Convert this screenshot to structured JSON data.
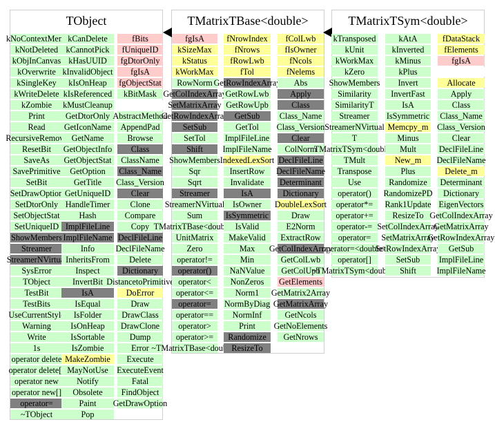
{
  "colors": {
    "g": "#ccffcc",
    "p": "#ffcccc",
    "y": "#ffff99",
    "d": "#808080",
    "w": "#ffffff"
  },
  "classes": [
    {
      "name": "TObject",
      "columns": [
        [
          [
            "kNoContextMenu",
            "g"
          ],
          [
            "kNotDeleted",
            "g"
          ],
          [
            "kObjInCanvas",
            "g"
          ],
          [
            "kOverwrite",
            "g"
          ],
          [
            "kSingleKey",
            "g"
          ],
          [
            "kWriteDelete",
            "g"
          ],
          [
            "kZombie",
            "g"
          ],
          [
            "Print",
            "g"
          ],
          [
            "Read",
            "g"
          ],
          [
            "RecursiveRemove",
            "g"
          ],
          [
            "ResetBit",
            "g"
          ],
          [
            "SaveAs",
            "g"
          ],
          [
            "SavePrimitive",
            "g"
          ],
          [
            "SetBit",
            "g"
          ],
          [
            "SetDrawOption",
            "g"
          ],
          [
            "SetDtorOnly",
            "g"
          ],
          [
            "SetObjectStat",
            "g"
          ],
          [
            "SetUniqueID",
            "g"
          ],
          [
            "ShowMembers",
            "d"
          ],
          [
            "Streamer",
            "d"
          ],
          [
            "StreamerNVirtual",
            "d"
          ],
          [
            "SysError",
            "g"
          ],
          [
            "TObject",
            "g"
          ],
          [
            "TestBit",
            "g"
          ],
          [
            "TestBits",
            "g"
          ],
          [
            "UseCurrentStyle",
            "g"
          ],
          [
            "Warning",
            "g"
          ],
          [
            "Write",
            "g"
          ],
          [
            "1s",
            "g"
          ],
          [
            "operator delete",
            "g"
          ],
          [
            "operator delete[]",
            "g"
          ],
          [
            "operator new",
            "g"
          ],
          [
            "operator new[]",
            "g"
          ],
          [
            "operator=",
            "d"
          ],
          [
            "~TObject",
            "g"
          ]
        ],
        [
          [
            "kCanDelete",
            "g"
          ],
          [
            "kCannotPick",
            "g"
          ],
          [
            "kHasUUID",
            "g"
          ],
          [
            "kInvalidObject",
            "g"
          ],
          [
            "kIsOnHeap",
            "g"
          ],
          [
            "kIsReferenced",
            "g"
          ],
          [
            "kMustCleanup",
            "g"
          ],
          [
            "GetDtorOnly",
            "g"
          ],
          [
            "GetIconName",
            "g"
          ],
          [
            "GetName",
            "g"
          ],
          [
            "GetObjectInfo",
            "g"
          ],
          [
            "GetObjectStat",
            "g"
          ],
          [
            "GetOption",
            "g"
          ],
          [
            "GetTitle",
            "g"
          ],
          [
            "GetUniqueID",
            "g"
          ],
          [
            "HandleTimer",
            "g"
          ],
          [
            "Hash",
            "g"
          ],
          [
            "ImplFileLine",
            "d"
          ],
          [
            "ImplFileName",
            "d"
          ],
          [
            "Info",
            "g"
          ],
          [
            "InheritsFrom",
            "g"
          ],
          [
            "Inspect",
            "g"
          ],
          [
            "InvertBit",
            "g"
          ],
          [
            "IsA",
            "d"
          ],
          [
            "IsEqual",
            "g"
          ],
          [
            "IsFolder",
            "g"
          ],
          [
            "IsOnHeap",
            "g"
          ],
          [
            "IsSortable",
            "g"
          ],
          [
            "IsZombie",
            "g"
          ],
          [
            "MakeZombie",
            "y"
          ],
          [
            "MayNotUse",
            "g"
          ],
          [
            "Notify",
            "g"
          ],
          [
            "Obsolete",
            "g"
          ],
          [
            "Paint",
            "g"
          ],
          [
            "Pop",
            "g"
          ]
        ],
        [
          [
            "fBits",
            "p"
          ],
          [
            "fUniqueID",
            "p"
          ],
          [
            "fgDtorOnly",
            "p"
          ],
          [
            "fgIsA",
            "p"
          ],
          [
            "fgObjectStat",
            "p"
          ],
          [
            "kBitMask",
            "g"
          ],
          [
            "",
            "w"
          ],
          [
            "AbstractMethod",
            "g"
          ],
          [
            "AppendPad",
            "g"
          ],
          [
            "Browse",
            "g"
          ],
          [
            "Class",
            "d"
          ],
          [
            "ClassName",
            "g"
          ],
          [
            "Class_Name",
            "d"
          ],
          [
            "Class_Version",
            "g"
          ],
          [
            "Clear",
            "d"
          ],
          [
            "Clone",
            "g"
          ],
          [
            "Compare",
            "g"
          ],
          [
            "Copy",
            "g"
          ],
          [
            "DeclFileLine",
            "d"
          ],
          [
            "DeclFileName",
            "g"
          ],
          [
            "Delete",
            "g"
          ],
          [
            "Dictionary",
            "d"
          ],
          [
            "DistancetoPrimitive",
            "g"
          ],
          [
            "DoError",
            "y"
          ],
          [
            "Draw",
            "g"
          ],
          [
            "DrawClass",
            "g"
          ],
          [
            "DrawClone",
            "g"
          ],
          [
            "Dump",
            "g"
          ],
          [
            "Error",
            "g"
          ],
          [
            "Execute",
            "g"
          ],
          [
            "ExecuteEvent",
            "g"
          ],
          [
            "Fatal",
            "g"
          ],
          [
            "FindObject",
            "g"
          ],
          [
            "GetDrawOption",
            "g"
          ]
        ]
      ]
    },
    {
      "name": "TMatrixTBase<double>",
      "columns": [
        [
          [
            "fgIsA",
            "p"
          ],
          [
            "kSizeMax",
            "y"
          ],
          [
            "kStatus",
            "y"
          ],
          [
            "kWorkMax",
            "y"
          ],
          [
            "RowNorm",
            "g"
          ],
          [
            "GetColIndexArray",
            "d"
          ],
          [
            "SetMatrixArray",
            "d"
          ],
          [
            "GetRowIndexArray",
            "d"
          ],
          [
            "SetSub",
            "d"
          ],
          [
            "SetTol",
            "g"
          ],
          [
            "Shift",
            "d"
          ],
          [
            "ShowMembers",
            "g"
          ],
          [
            "Sqr",
            "g"
          ],
          [
            "Sqrt",
            "g"
          ],
          [
            "Streamer",
            "d"
          ],
          [
            "StreamerNVirtual",
            "g"
          ],
          [
            "Sum",
            "g"
          ],
          [
            "TMatrixTBase<double>",
            "g"
          ],
          [
            "UnitMatrix",
            "g"
          ],
          [
            "Zero",
            "g"
          ],
          [
            "operator!=",
            "g"
          ],
          [
            "operator()",
            "d"
          ],
          [
            "operator<",
            "g"
          ],
          [
            "operator<=",
            "g"
          ],
          [
            "operator=",
            "d"
          ],
          [
            "operator==",
            "g"
          ],
          [
            "operator>",
            "g"
          ],
          [
            "operator>=",
            "g"
          ],
          [
            "~TMatrixTBase<double>",
            "g"
          ]
        ],
        [
          [
            "fNrowIndex",
            "y"
          ],
          [
            "fNrows",
            "y"
          ],
          [
            "fRowLwb",
            "y"
          ],
          [
            "fTol",
            "y"
          ],
          [
            "GetRowIndexArray",
            "d"
          ],
          [
            "GetRowLwb",
            "g"
          ],
          [
            "GetRowUpb",
            "g"
          ],
          [
            "GetSub",
            "d"
          ],
          [
            "GetTol",
            "g"
          ],
          [
            "ImplFileLine",
            "g"
          ],
          [
            "ImplFileName",
            "g"
          ],
          [
            "IndexedLexSort",
            "y"
          ],
          [
            "InsertRow",
            "g"
          ],
          [
            "Invalidate",
            "g"
          ],
          [
            "IsA",
            "d"
          ],
          [
            "IsOwner",
            "g"
          ],
          [
            "IsSymmetric",
            "d"
          ],
          [
            "IsValid",
            "g"
          ],
          [
            "MakeValid",
            "g"
          ],
          [
            "Max",
            "g"
          ],
          [
            "Min",
            "g"
          ],
          [
            "NaNValue",
            "g"
          ],
          [
            "NonZeros",
            "g"
          ],
          [
            "Norm1",
            "g"
          ],
          [
            "NormByDiag",
            "g"
          ],
          [
            "NormInf",
            "g"
          ],
          [
            "Print",
            "g"
          ],
          [
            "Randomize",
            "d"
          ],
          [
            "ResizeTo",
            "d"
          ]
        ],
        [
          [
            "fColLwb",
            "y"
          ],
          [
            "fIsOwner",
            "y"
          ],
          [
            "fNcols",
            "y"
          ],
          [
            "fNelems",
            "y"
          ],
          [
            "Abs",
            "g"
          ],
          [
            "Apply",
            "d"
          ],
          [
            "Class",
            "d"
          ],
          [
            "Class_Name",
            "g"
          ],
          [
            "Class_Version",
            "g"
          ],
          [
            "Clear",
            "d"
          ],
          [
            "ColNorm",
            "g"
          ],
          [
            "DeclFileLine",
            "d"
          ],
          [
            "DeclFileName",
            "d"
          ],
          [
            "Determinant",
            "d"
          ],
          [
            "Dictionary",
            "d"
          ],
          [
            "DoubleLexSort",
            "y"
          ],
          [
            "Draw",
            "g"
          ],
          [
            "E2Norm",
            "g"
          ],
          [
            "ExtractRow",
            "g"
          ],
          [
            "GetColIndexArray",
            "d"
          ],
          [
            "GetColLwb",
            "g"
          ],
          [
            "GetColUpb",
            "g"
          ],
          [
            "GetElements",
            "p"
          ],
          [
            "GetMatrix2Array",
            "g"
          ],
          [
            "GetMatrixArray",
            "d"
          ],
          [
            "GetNcols",
            "g"
          ],
          [
            "GetNoElements",
            "g"
          ],
          [
            "GetNrows",
            "g"
          ]
        ]
      ]
    },
    {
      "name": "TMatrixTSym<double>",
      "columns": [
        [
          [
            "kTransposed",
            "g"
          ],
          [
            "kUnit",
            "g"
          ],
          [
            "kWorkMax",
            "g"
          ],
          [
            "kZero",
            "g"
          ],
          [
            "ShowMembers",
            "g"
          ],
          [
            "Similarity",
            "g"
          ],
          [
            "SimilarityT",
            "g"
          ],
          [
            "Streamer",
            "g"
          ],
          [
            "StreamerNVirtual",
            "g"
          ],
          [
            "T",
            "g"
          ],
          [
            "TMatrixTSym<double>",
            "g"
          ],
          [
            "TMult",
            "g"
          ],
          [
            "Transpose",
            "g"
          ],
          [
            "Use",
            "g"
          ],
          [
            "operator()",
            "g"
          ],
          [
            "operator*=",
            "g"
          ],
          [
            "operator+=",
            "g"
          ],
          [
            "operator-=",
            "g"
          ],
          [
            "operator=",
            "g"
          ],
          [
            "operator=<double>",
            "g"
          ],
          [
            "operator[]",
            "g"
          ],
          [
            "~TMatrixTSym<double>",
            "g"
          ]
        ],
        [
          [
            "kAtA",
            "g"
          ],
          [
            "kInverted",
            "g"
          ],
          [
            "kMinus",
            "g"
          ],
          [
            "kPlus",
            "g"
          ],
          [
            "Invert",
            "g"
          ],
          [
            "InvertFast",
            "g"
          ],
          [
            "IsA",
            "g"
          ],
          [
            "IsSymmetric",
            "g"
          ],
          [
            "Memcpy_m",
            "y"
          ],
          [
            "Minus",
            "g"
          ],
          [
            "Mult",
            "g"
          ],
          [
            "New_m",
            "y"
          ],
          [
            "Plus",
            "g"
          ],
          [
            "Randomize",
            "g"
          ],
          [
            "RandomizePD",
            "g"
          ],
          [
            "Rank1Update",
            "g"
          ],
          [
            "ResizeTo",
            "g"
          ],
          [
            "SetColIndexArray",
            "g"
          ],
          [
            "SetMatrixArray",
            "g"
          ],
          [
            "SetRowIndexArray",
            "g"
          ],
          [
            "SetSub",
            "g"
          ],
          [
            "Shift",
            "g"
          ]
        ],
        [
          [
            "fDataStack",
            "y"
          ],
          [
            "fElements",
            "y"
          ],
          [
            "fgIsA",
            "p"
          ],
          [
            "",
            "w"
          ],
          [
            "Allocate",
            "y"
          ],
          [
            "Apply",
            "g"
          ],
          [
            "Class",
            "g"
          ],
          [
            "Class_Name",
            "g"
          ],
          [
            "Class_Version",
            "g"
          ],
          [
            "Clear",
            "g"
          ],
          [
            "DeclFileLine",
            "g"
          ],
          [
            "DeclFileName",
            "g"
          ],
          [
            "Delete_m",
            "y"
          ],
          [
            "Determinant",
            "g"
          ],
          [
            "Dictionary",
            "g"
          ],
          [
            "EigenVectors",
            "g"
          ],
          [
            "GetColIndexArray",
            "g"
          ],
          [
            "GetMatrixArray",
            "g"
          ],
          [
            "GetRowIndexArray",
            "g"
          ],
          [
            "GetSub",
            "g"
          ],
          [
            "ImplFileLine",
            "g"
          ],
          [
            "ImplFileName",
            "g"
          ]
        ]
      ]
    }
  ]
}
